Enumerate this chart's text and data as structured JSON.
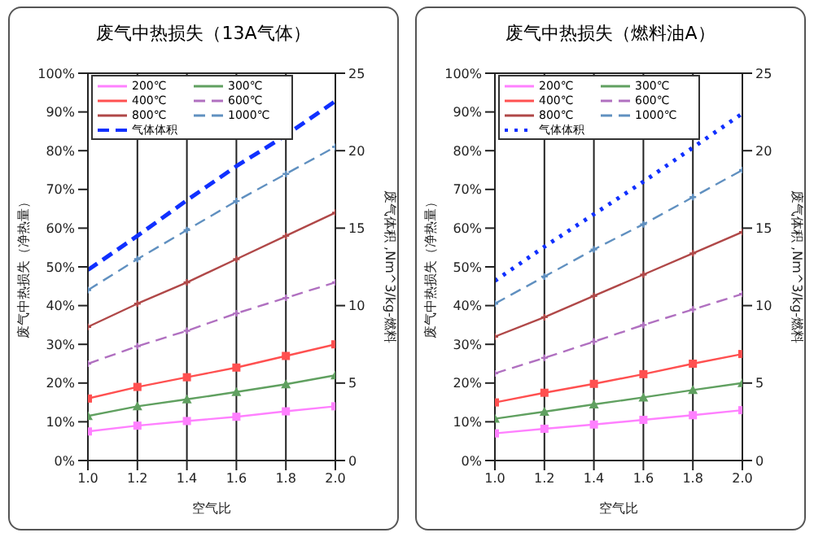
{
  "chart_data": [
    {
      "type": "line",
      "title": "废气中热损失（13A气体）",
      "xlabel": "空气比",
      "ylabel": "废气中热损失（净热量）",
      "y2label": "废气体积 ,Nm^3/kg-燃料",
      "x": [
        1.0,
        1.2,
        1.4,
        1.6,
        1.8,
        2.0
      ],
      "xlim": [
        1,
        2
      ],
      "xticks": [
        {
          "value": 1,
          "label": "1.0"
        },
        {
          "value": 1.2,
          "label": "1.2"
        },
        {
          "value": 1.4,
          "label": "1.4"
        },
        {
          "value": 1.6,
          "label": "1.6"
        },
        {
          "value": 1.8,
          "label": "1.8"
        },
        {
          "value": 2,
          "label": "2.0"
        }
      ],
      "ylim": [
        0,
        100
      ],
      "yticks": [
        {
          "value": 0,
          "label": "0%"
        },
        {
          "value": 10,
          "label": "10%"
        },
        {
          "value": 20,
          "label": "20%"
        },
        {
          "value": 30,
          "label": "30%"
        },
        {
          "value": 40,
          "label": "40%"
        },
        {
          "value": 50,
          "label": "50%"
        },
        {
          "value": 60,
          "label": "60%"
        },
        {
          "value": 70,
          "label": "70%"
        },
        {
          "value": 80,
          "label": "80%"
        },
        {
          "value": 90,
          "label": "90%"
        },
        {
          "value": 100,
          "label": "100%"
        }
      ],
      "y2lim": [
        0,
        25
      ],
      "y2ticks": [
        0,
        5,
        10,
        15,
        20,
        25
      ],
      "grid": true,
      "legend": "top left",
      "series": [
        {
          "name": "200℃",
          "color": "#ff80ff",
          "marker": "square",
          "line_style": "solid",
          "values": [
            7.5,
            9,
            10.2,
            11.3,
            12.7,
            14
          ]
        },
        {
          "name": "300℃",
          "color": "#60a060",
          "marker": "triangle",
          "line_style": "solid",
          "values": [
            11.5,
            14,
            15.8,
            17.7,
            19.7,
            22
          ]
        },
        {
          "name": "400℃",
          "color": "#ff5050",
          "marker": "square",
          "line_style": "solid",
          "values": [
            16,
            19,
            21.5,
            24,
            27,
            30
          ]
        },
        {
          "name": "600℃",
          "color": "#b070c0",
          "marker": "cross",
          "line_style": "dashed",
          "values": [
            25,
            29.5,
            33.5,
            38,
            42,
            46
          ]
        },
        {
          "name": "800℃",
          "color": "#b04848",
          "marker": "cross",
          "line_style": "solid",
          "values": [
            34.5,
            40.5,
            46,
            52,
            58,
            64
          ]
        },
        {
          "name": "1000℃",
          "color": "#6090c0",
          "marker": "cross",
          "line_style": "dashed",
          "values": [
            44,
            52,
            59.5,
            67,
            74,
            81
          ]
        },
        {
          "name": "气体体积",
          "color": "#1030ff",
          "marker": "none",
          "line_style": "dashed",
          "axis": "y2",
          "values": [
            12.3,
            14.5,
            16.8,
            19,
            21,
            23.2
          ]
        }
      ]
    },
    {
      "type": "line",
      "title": "废气中热损失（燃料油A）",
      "xlabel": "空气比",
      "ylabel": "废气中热损失（净热量）",
      "y2label": "废气体积 ,Nm^3/kg-燃料",
      "x": [
        1.0,
        1.2,
        1.4,
        1.6,
        1.8,
        2.0
      ],
      "xlim": [
        1,
        2
      ],
      "xticks": [
        {
          "value": 1,
          "label": "1.0"
        },
        {
          "value": 1.2,
          "label": "1.2"
        },
        {
          "value": 1.4,
          "label": "1.4"
        },
        {
          "value": 1.6,
          "label": "1.6"
        },
        {
          "value": 1.8,
          "label": "1.8"
        },
        {
          "value": 2,
          "label": "2.0"
        }
      ],
      "ylim": [
        0,
        100
      ],
      "yticks": [
        {
          "value": 0,
          "label": "0%"
        },
        {
          "value": 10,
          "label": "10%"
        },
        {
          "value": 20,
          "label": "20%"
        },
        {
          "value": 30,
          "label": "30%"
        },
        {
          "value": 40,
          "label": "40%"
        },
        {
          "value": 50,
          "label": "50%"
        },
        {
          "value": 60,
          "label": "60%"
        },
        {
          "value": 70,
          "label": "70%"
        },
        {
          "value": 80,
          "label": "80%"
        },
        {
          "value": 90,
          "label": "90%"
        },
        {
          "value": 100,
          "label": "100%"
        }
      ],
      "y2lim": [
        0,
        25
      ],
      "y2ticks": [
        0,
        5,
        10,
        15,
        20,
        25
      ],
      "grid": true,
      "legend": "top left",
      "series": [
        {
          "name": "200℃",
          "color": "#ff80ff",
          "marker": "square",
          "line_style": "solid",
          "values": [
            7,
            8.2,
            9.3,
            10.5,
            11.7,
            13
          ]
        },
        {
          "name": "300℃",
          "color": "#60a060",
          "marker": "triangle",
          "line_style": "solid",
          "values": [
            10.8,
            12.6,
            14.5,
            16.3,
            18.2,
            20
          ]
        },
        {
          "name": "400℃",
          "color": "#ff5050",
          "marker": "square",
          "line_style": "solid",
          "values": [
            15,
            17.5,
            19.8,
            22.3,
            25,
            27.5
          ]
        },
        {
          "name": "600℃",
          "color": "#b070c0",
          "marker": "cross",
          "line_style": "dashed",
          "values": [
            22.5,
            26.5,
            30.7,
            35,
            39,
            43
          ]
        },
        {
          "name": "800℃",
          "color": "#b04848",
          "marker": "cross",
          "line_style": "solid",
          "values": [
            32,
            37,
            42.5,
            48,
            53.5,
            59
          ]
        },
        {
          "name": "1000℃",
          "color": "#6090c0",
          "marker": "cross",
          "line_style": "dashed",
          "values": [
            40.5,
            47.5,
            54.5,
            61,
            68,
            75
          ]
        },
        {
          "name": "气体体积",
          "color": "#1030ff",
          "marker": "none",
          "line_style": "dotted",
          "axis": "y2",
          "values": [
            11.6,
            13.8,
            15.9,
            18,
            20.2,
            22.4
          ]
        }
      ]
    }
  ]
}
